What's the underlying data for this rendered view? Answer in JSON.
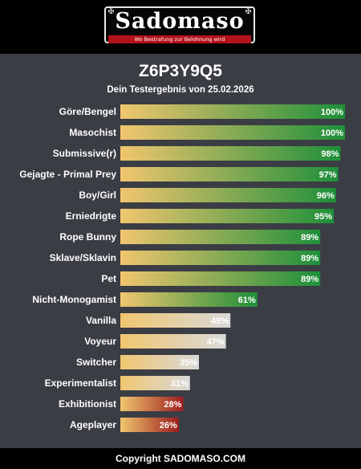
{
  "brand": {
    "wordmark": "Sadomaso",
    "tagline": "Wo Bestrafung zur Belohnung wird",
    "ornament_icon": "maltese-cross-icon"
  },
  "result": {
    "code": "Z6P3Y9Q5",
    "subtitle": "Dein Testergebnis von 25.02.2026"
  },
  "footer": {
    "copyright": "Copyright SADOMASO.COM"
  },
  "colors": {
    "panel": "#3b3d44",
    "bar_start": "#f1c66f",
    "high_end": "#1e8f3a",
    "mid_end": "#d9d9d9",
    "low_end": "#9c1c1c"
  },
  "chart_data": {
    "type": "bar",
    "orientation": "horizontal",
    "xlim": [
      0,
      100
    ],
    "categories": [
      "Göre/Bengel",
      "Masochist",
      "Submissive(r)",
      "Gejagte - Primal Prey",
      "Boy/Girl",
      "Erniedrigte",
      "Rope Bunny",
      "Sklave/Sklavin",
      "Pet",
      "Nicht-Monogamist",
      "Vanilla",
      "Voyeur",
      "Switcher",
      "Experimentalist",
      "Exhibitionist",
      "Ageplayer"
    ],
    "values": [
      100,
      100,
      98,
      97,
      96,
      95,
      89,
      89,
      89,
      61,
      49,
      47,
      35,
      31,
      28,
      26
    ],
    "labels": [
      "100%",
      "100%",
      "98%",
      "97%",
      "96%",
      "95%",
      "89%",
      "89%",
      "89%",
      "61%",
      "49%",
      "47%",
      "35%",
      "31%",
      "28%",
      "26%"
    ],
    "color_scale": [
      "high",
      "high",
      "high",
      "high",
      "high",
      "high",
      "high",
      "high",
      "high",
      "high",
      "mid",
      "mid",
      "mid",
      "mid",
      "low",
      "low"
    ]
  }
}
